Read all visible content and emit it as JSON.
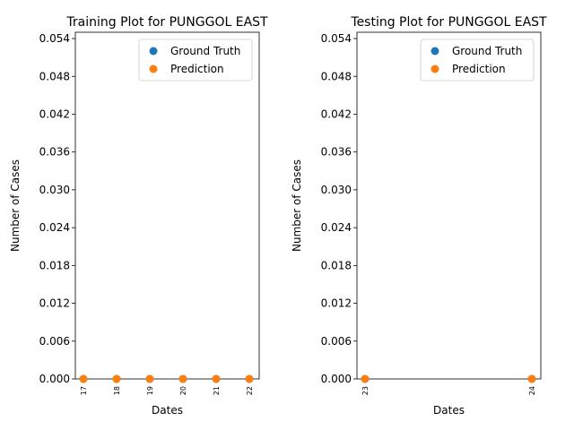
{
  "chart_data": [
    {
      "type": "scatter",
      "title": "Training Plot for PUNGGOL EAST",
      "xlabel": "Dates",
      "ylabel": "Number of Cases",
      "x": [
        "17",
        "18",
        "19",
        "20",
        "21",
        "22"
      ],
      "series": [
        {
          "name": "Ground Truth",
          "color": "#1f77b4",
          "values": [
            0,
            0,
            0,
            0,
            0,
            0
          ]
        },
        {
          "name": "Prediction",
          "color": "#ff7f0e",
          "values": [
            0,
            0,
            0,
            0,
            0,
            0
          ]
        }
      ],
      "ylim": [
        0,
        0.055
      ],
      "yticks": [
        "0.000",
        "0.006",
        "0.012",
        "0.018",
        "0.024",
        "0.030",
        "0.036",
        "0.042",
        "0.048",
        "0.054"
      ],
      "legend": "top-right",
      "grid": false
    },
    {
      "type": "scatter",
      "title": "Testing Plot for PUNGGOL EAST",
      "xlabel": "Dates",
      "ylabel": "Number of Cases",
      "x": [
        "23",
        "24"
      ],
      "series": [
        {
          "name": "Ground Truth",
          "color": "#1f77b4",
          "values": [
            0,
            0
          ]
        },
        {
          "name": "Prediction",
          "color": "#ff7f0e",
          "values": [
            0,
            0
          ]
        }
      ],
      "ylim": [
        0,
        0.055
      ],
      "yticks": [
        "0.000",
        "0.006",
        "0.012",
        "0.018",
        "0.024",
        "0.030",
        "0.036",
        "0.042",
        "0.048",
        "0.054"
      ],
      "legend": "top-right",
      "grid": false
    }
  ]
}
